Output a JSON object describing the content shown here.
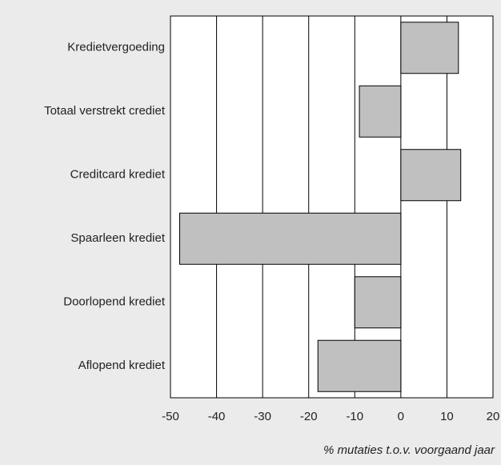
{
  "chart_data": {
    "type": "bar",
    "orientation": "horizontal",
    "categories": [
      "Kredietvergoeding",
      "Totaal verstrekt crediet",
      "Creditcard krediet",
      "Spaarleen krediet",
      "Doorlopend krediet",
      "Aflopend krediet"
    ],
    "values": [
      12.5,
      -9,
      13,
      -48,
      -10,
      -18
    ],
    "color": "#c0c0c0",
    "xlim": [
      -50,
      20
    ],
    "xticks": [
      -50,
      -40,
      -30,
      -20,
      -10,
      0,
      10,
      20
    ],
    "x_label": "% mutaties t.o.v. voorgaand jaar",
    "grid": true
  }
}
